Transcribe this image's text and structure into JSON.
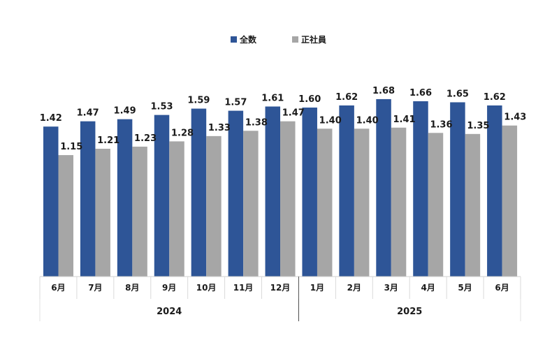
{
  "chart_data": {
    "type": "bar",
    "categories": [
      "6月",
      "7月",
      "8月",
      "9月",
      "10月",
      "11月",
      "12月",
      "1月",
      "2月",
      "3月",
      "4月",
      "5月",
      "6月"
    ],
    "groups": [
      {
        "label": "2024",
        "count": 7
      },
      {
        "label": "2025",
        "count": 6
      }
    ],
    "series": [
      {
        "name": "全数",
        "color": "#2E5597",
        "values": [
          1.42,
          1.47,
          1.49,
          1.53,
          1.59,
          1.57,
          1.61,
          1.6,
          1.62,
          1.68,
          1.66,
          1.65,
          1.62
        ]
      },
      {
        "name": "正社員",
        "color": "#A6A6A6",
        "values": [
          1.15,
          1.21,
          1.23,
          1.28,
          1.33,
          1.38,
          1.47,
          1.4,
          1.4,
          1.41,
          1.36,
          1.35,
          1.43
        ]
      }
    ],
    "ylim": [
      0,
      2.0
    ],
    "legend_position": "top-center",
    "grid": false,
    "title": "",
    "xlabel": "",
    "ylabel": ""
  }
}
